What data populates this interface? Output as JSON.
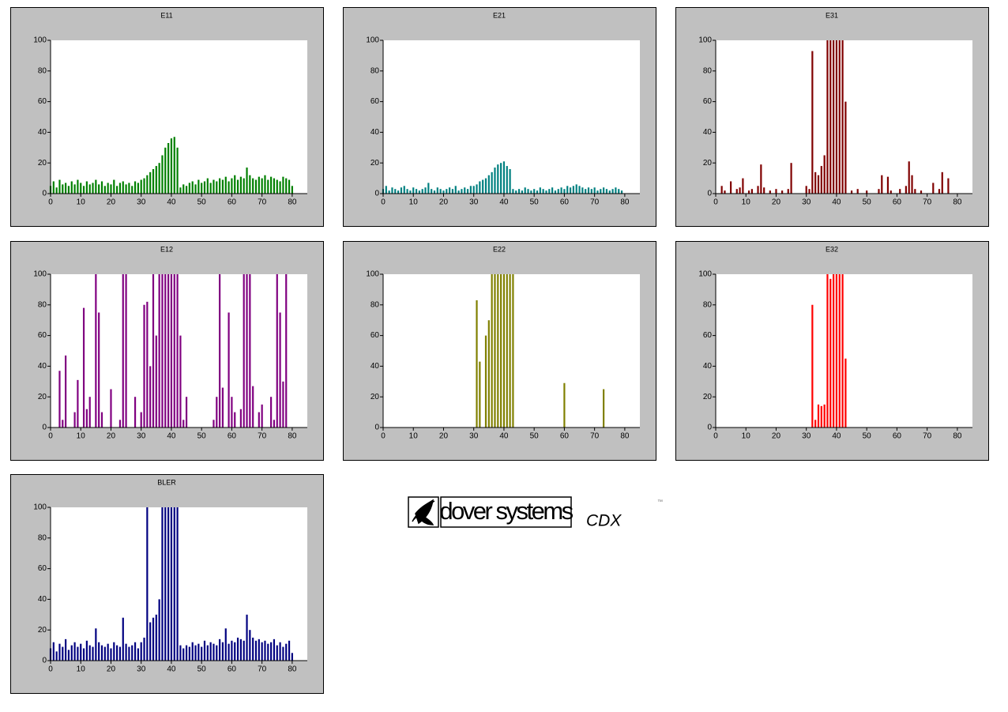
{
  "chart_data": [
    {
      "type": "bar",
      "title": "E11",
      "color": "#008000",
      "xlim": [
        0,
        85
      ],
      "ylim": [
        0,
        100
      ],
      "xticks": [
        0,
        10,
        20,
        30,
        40,
        50,
        60,
        70,
        80
      ],
      "yticks": [
        0,
        20,
        40,
        60,
        80,
        100
      ],
      "x": [
        0,
        1,
        2,
        3,
        4,
        5,
        6,
        7,
        8,
        9,
        10,
        11,
        12,
        13,
        14,
        15,
        16,
        17,
        18,
        19,
        20,
        21,
        22,
        23,
        24,
        25,
        26,
        27,
        28,
        29,
        30,
        31,
        32,
        33,
        34,
        35,
        36,
        37,
        38,
        39,
        40,
        41,
        42,
        43,
        44,
        45,
        46,
        47,
        48,
        49,
        50,
        51,
        52,
        53,
        54,
        55,
        56,
        57,
        58,
        59,
        60,
        61,
        62,
        63,
        64,
        65,
        66,
        67,
        68,
        69,
        70,
        71,
        72,
        73,
        74,
        75,
        76,
        77,
        78,
        79,
        80
      ],
      "values": [
        5,
        8,
        4,
        9,
        6,
        7,
        5,
        8,
        6,
        9,
        7,
        5,
        8,
        6,
        7,
        9,
        6,
        8,
        5,
        7,
        6,
        9,
        5,
        7,
        8,
        6,
        7,
        5,
        8,
        7,
        9,
        10,
        12,
        14,
        16,
        18,
        20,
        25,
        30,
        33,
        36,
        37,
        30,
        4,
        6,
        5,
        7,
        8,
        6,
        9,
        7,
        8,
        10,
        7,
        9,
        8,
        10,
        9,
        11,
        8,
        10,
        12,
        9,
        11,
        10,
        17,
        12,
        10,
        9,
        11,
        10,
        12,
        9,
        11,
        10,
        9,
        8,
        11,
        10,
        9,
        5
      ]
    },
    {
      "type": "bar",
      "title": "E21",
      "color": "#008080",
      "xlim": [
        0,
        85
      ],
      "ylim": [
        0,
        100
      ],
      "xticks": [
        0,
        10,
        20,
        30,
        40,
        50,
        60,
        70,
        80
      ],
      "yticks": [
        0,
        20,
        40,
        60,
        80,
        100
      ],
      "x": [
        0,
        1,
        2,
        3,
        4,
        5,
        6,
        7,
        8,
        9,
        10,
        11,
        12,
        13,
        14,
        15,
        16,
        17,
        18,
        19,
        20,
        21,
        22,
        23,
        24,
        25,
        26,
        27,
        28,
        29,
        30,
        31,
        32,
        33,
        34,
        35,
        36,
        37,
        38,
        39,
        40,
        41,
        42,
        43,
        44,
        45,
        46,
        47,
        48,
        49,
        50,
        51,
        52,
        53,
        54,
        55,
        56,
        57,
        58,
        59,
        60,
        61,
        62,
        63,
        64,
        65,
        66,
        67,
        68,
        69,
        70,
        71,
        72,
        73,
        74,
        75,
        76,
        77,
        78,
        79,
        80
      ],
      "values": [
        3,
        5,
        2,
        4,
        3,
        2,
        4,
        5,
        3,
        2,
        4,
        3,
        2,
        3,
        4,
        7,
        3,
        2,
        4,
        3,
        2,
        3,
        4,
        3,
        5,
        2,
        3,
        4,
        3,
        5,
        5,
        6,
        8,
        9,
        10,
        12,
        14,
        17,
        19,
        20,
        21,
        18,
        16,
        3,
        2,
        3,
        2,
        4,
        3,
        2,
        3,
        2,
        4,
        3,
        2,
        3,
        4,
        2,
        3,
        4,
        3,
        5,
        4,
        5,
        6,
        5,
        4,
        3,
        4,
        3,
        4,
        2,
        3,
        4,
        3,
        2,
        3,
        4,
        3,
        2,
        0
      ]
    },
    {
      "type": "bar",
      "title": "E31",
      "color": "#800000",
      "xlim": [
        0,
        85
      ],
      "ylim": [
        0,
        100
      ],
      "xticks": [
        0,
        10,
        20,
        30,
        40,
        50,
        60,
        70,
        80
      ],
      "yticks": [
        0,
        20,
        40,
        60,
        80,
        100
      ],
      "x": [
        0,
        1,
        2,
        3,
        4,
        5,
        6,
        7,
        8,
        9,
        10,
        11,
        12,
        13,
        14,
        15,
        16,
        17,
        18,
        19,
        20,
        21,
        22,
        23,
        24,
        25,
        26,
        27,
        28,
        29,
        30,
        31,
        32,
        33,
        34,
        35,
        36,
        37,
        38,
        39,
        40,
        41,
        42,
        43,
        44,
        45,
        46,
        47,
        48,
        49,
        50,
        51,
        52,
        53,
        54,
        55,
        56,
        57,
        58,
        59,
        60,
        61,
        62,
        63,
        64,
        65,
        66,
        67,
        68,
        69,
        70,
        71,
        72,
        73,
        74,
        75,
        76,
        77,
        78,
        79,
        80
      ],
      "values": [
        0,
        0,
        5,
        2,
        0,
        8,
        0,
        3,
        4,
        10,
        0,
        2,
        3,
        0,
        5,
        19,
        4,
        0,
        2,
        0,
        3,
        0,
        2,
        0,
        3,
        20,
        0,
        0,
        0,
        0,
        5,
        3,
        93,
        14,
        12,
        18,
        25,
        100,
        100,
        100,
        100,
        100,
        100,
        60,
        0,
        2,
        0,
        3,
        0,
        0,
        2,
        0,
        0,
        0,
        3,
        12,
        0,
        11,
        2,
        0,
        0,
        3,
        0,
        5,
        21,
        12,
        3,
        0,
        2,
        0,
        0,
        0,
        7,
        0,
        3,
        14,
        0,
        10,
        0,
        0,
        0
      ]
    },
    {
      "type": "bar",
      "title": "E12",
      "color": "#800080",
      "xlim": [
        0,
        85
      ],
      "ylim": [
        0,
        100
      ],
      "xticks": [
        0,
        10,
        20,
        30,
        40,
        50,
        60,
        70,
        80
      ],
      "yticks": [
        0,
        20,
        40,
        60,
        80,
        100
      ],
      "x": [
        0,
        1,
        2,
        3,
        4,
        5,
        6,
        7,
        8,
        9,
        10,
        11,
        12,
        13,
        14,
        15,
        16,
        17,
        18,
        19,
        20,
        21,
        22,
        23,
        24,
        25,
        26,
        27,
        28,
        29,
        30,
        31,
        32,
        33,
        34,
        35,
        36,
        37,
        38,
        39,
        40,
        41,
        42,
        43,
        44,
        45,
        46,
        47,
        48,
        49,
        50,
        51,
        52,
        53,
        54,
        55,
        56,
        57,
        58,
        59,
        60,
        61,
        62,
        63,
        64,
        65,
        66,
        67,
        68,
        69,
        70,
        71,
        72,
        73,
        74,
        75,
        76,
        77,
        78,
        79,
        80
      ],
      "values": [
        0,
        0,
        0,
        37,
        5,
        47,
        0,
        0,
        10,
        31,
        0,
        78,
        12,
        20,
        0,
        100,
        75,
        10,
        0,
        0,
        25,
        0,
        0,
        5,
        100,
        100,
        0,
        0,
        20,
        0,
        10,
        80,
        82,
        40,
        100,
        60,
        100,
        100,
        100,
        100,
        100,
        100,
        100,
        60,
        5,
        20,
        0,
        0,
        0,
        0,
        0,
        0,
        0,
        0,
        5,
        20,
        100,
        26,
        0,
        75,
        20,
        10,
        0,
        12,
        100,
        100,
        100,
        27,
        0,
        10,
        15,
        0,
        0,
        20,
        5,
        100,
        75,
        30,
        100,
        0,
        0
      ]
    },
    {
      "type": "bar",
      "title": "E22",
      "color": "#808000",
      "xlim": [
        0,
        85
      ],
      "ylim": [
        0,
        100
      ],
      "xticks": [
        0,
        10,
        20,
        30,
        40,
        50,
        60,
        70,
        80
      ],
      "yticks": [
        0,
        20,
        40,
        60,
        80,
        100
      ],
      "x": [
        0,
        1,
        2,
        3,
        4,
        5,
        6,
        7,
        8,
        9,
        10,
        11,
        12,
        13,
        14,
        15,
        16,
        17,
        18,
        19,
        20,
        21,
        22,
        23,
        24,
        25,
        26,
        27,
        28,
        29,
        30,
        31,
        32,
        33,
        34,
        35,
        36,
        37,
        38,
        39,
        40,
        41,
        42,
        43,
        44,
        45,
        46,
        47,
        48,
        49,
        50,
        51,
        52,
        53,
        54,
        55,
        56,
        57,
        58,
        59,
        60,
        61,
        62,
        63,
        64,
        65,
        66,
        67,
        68,
        69,
        70,
        71,
        72,
        73,
        74,
        75,
        76,
        77,
        78,
        79,
        80
      ],
      "values": [
        0,
        0,
        0,
        0,
        0,
        0,
        0,
        0,
        0,
        0,
        0,
        0,
        0,
        0,
        0,
        0,
        0,
        0,
        0,
        0,
        0,
        0,
        0,
        0,
        0,
        0,
        0,
        0,
        0,
        0,
        0,
        83,
        43,
        0,
        60,
        70,
        100,
        100,
        100,
        100,
        100,
        100,
        100,
        100,
        0,
        0,
        0,
        0,
        0,
        0,
        0,
        0,
        0,
        0,
        0,
        0,
        0,
        0,
        0,
        0,
        29,
        0,
        0,
        0,
        0,
        0,
        0,
        0,
        0,
        0,
        0,
        0,
        0,
        25,
        0,
        0,
        0,
        0,
        0,
        0,
        0
      ]
    },
    {
      "type": "bar",
      "title": "E32",
      "color": "#ff0000",
      "xlim": [
        0,
        85
      ],
      "ylim": [
        0,
        100
      ],
      "xticks": [
        0,
        10,
        20,
        30,
        40,
        50,
        60,
        70,
        80
      ],
      "yticks": [
        0,
        20,
        40,
        60,
        80,
        100
      ],
      "x": [
        0,
        1,
        2,
        3,
        4,
        5,
        6,
        7,
        8,
        9,
        10,
        11,
        12,
        13,
        14,
        15,
        16,
        17,
        18,
        19,
        20,
        21,
        22,
        23,
        24,
        25,
        26,
        27,
        28,
        29,
        30,
        31,
        32,
        33,
        34,
        35,
        36,
        37,
        38,
        39,
        40,
        41,
        42,
        43,
        44,
        45,
        46,
        47,
        48,
        49,
        50,
        51,
        52,
        53,
        54,
        55,
        56,
        57,
        58,
        59,
        60,
        61,
        62,
        63,
        64,
        65,
        66,
        67,
        68,
        69,
        70,
        71,
        72,
        73,
        74,
        75,
        76,
        77,
        78,
        79,
        80
      ],
      "values": [
        0,
        0,
        0,
        0,
        0,
        0,
        0,
        0,
        0,
        0,
        0,
        0,
        0,
        0,
        0,
        0,
        0,
        0,
        0,
        0,
        0,
        0,
        0,
        0,
        0,
        0,
        0,
        0,
        0,
        0,
        0,
        0,
        80,
        5,
        15,
        14,
        15,
        100,
        97,
        100,
        100,
        100,
        100,
        45,
        0,
        0,
        0,
        0,
        0,
        0,
        0,
        0,
        0,
        0,
        0,
        0,
        0,
        0,
        0,
        0,
        0,
        0,
        0,
        0,
        0,
        0,
        0,
        0,
        0,
        0,
        0,
        0,
        0,
        0,
        0,
        0,
        0,
        0,
        0,
        0,
        0
      ]
    },
    {
      "type": "bar",
      "title": "BLER",
      "color": "#000080",
      "xlim": [
        0,
        85
      ],
      "ylim": [
        0,
        100
      ],
      "xticks": [
        0,
        10,
        20,
        30,
        40,
        50,
        60,
        70,
        80
      ],
      "yticks": [
        0,
        20,
        40,
        60,
        80,
        100
      ],
      "x": [
        0,
        1,
        2,
        3,
        4,
        5,
        6,
        7,
        8,
        9,
        10,
        11,
        12,
        13,
        14,
        15,
        16,
        17,
        18,
        19,
        20,
        21,
        22,
        23,
        24,
        25,
        26,
        27,
        28,
        29,
        30,
        31,
        32,
        33,
        34,
        35,
        36,
        37,
        38,
        39,
        40,
        41,
        42,
        43,
        44,
        45,
        46,
        47,
        48,
        49,
        50,
        51,
        52,
        53,
        54,
        55,
        56,
        57,
        58,
        59,
        60,
        61,
        62,
        63,
        64,
        65,
        66,
        67,
        68,
        69,
        70,
        71,
        72,
        73,
        74,
        75,
        76,
        77,
        78,
        79,
        80
      ],
      "values": [
        8,
        12,
        6,
        11,
        9,
        14,
        7,
        10,
        12,
        9,
        11,
        8,
        13,
        10,
        9,
        21,
        12,
        10,
        9,
        11,
        8,
        12,
        10,
        9,
        28,
        11,
        9,
        10,
        12,
        8,
        12,
        15,
        100,
        25,
        28,
        30,
        40,
        100,
        100,
        100,
        100,
        100,
        100,
        10,
        8,
        10,
        9,
        12,
        10,
        11,
        9,
        13,
        10,
        12,
        11,
        10,
        14,
        12,
        21,
        11,
        13,
        12,
        15,
        14,
        13,
        30,
        20,
        15,
        13,
        14,
        12,
        13,
        11,
        12,
        14,
        10,
        12,
        9,
        11,
        13,
        5
      ]
    }
  ],
  "logo": {
    "brand": "dover systems",
    "product": "CDX",
    "mark": "™"
  }
}
